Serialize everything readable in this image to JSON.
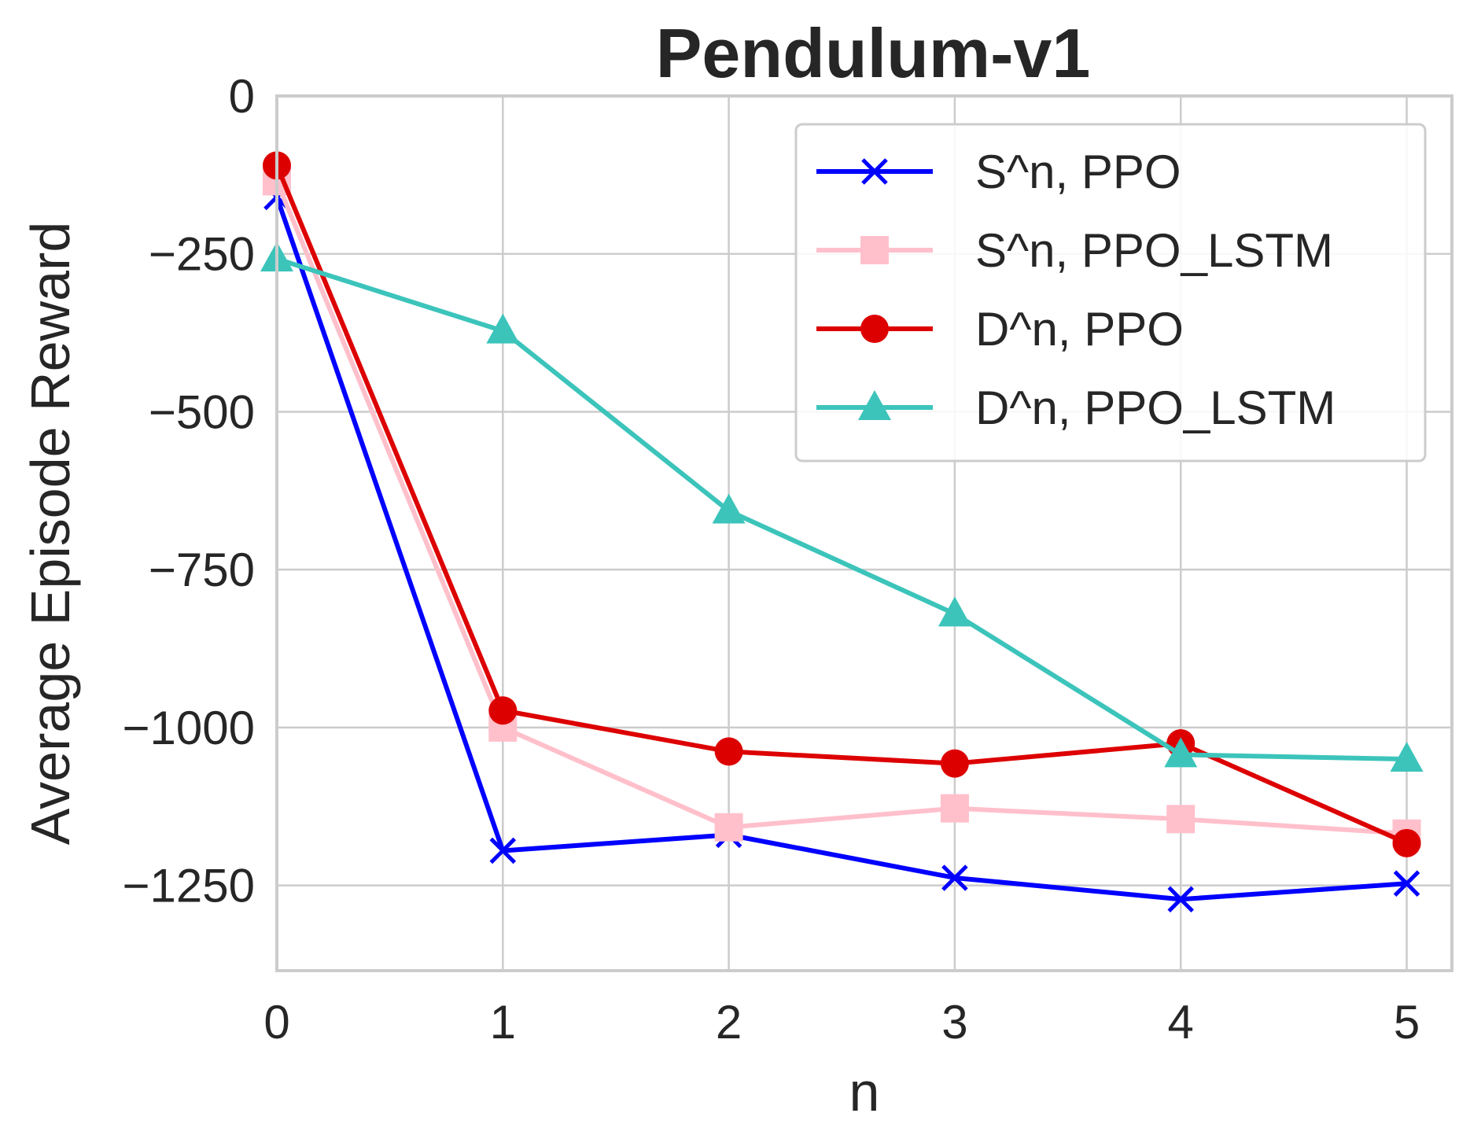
{
  "chart_data": {
    "type": "line",
    "title": "Pendulum-v1",
    "xlabel": "n",
    "ylabel": "Average Episode Reward",
    "x": [
      0,
      1,
      2,
      3,
      4,
      5
    ],
    "xlim": [
      0,
      5.2
    ],
    "ylim": [
      -1385,
      0
    ],
    "xticks": [
      0,
      1,
      2,
      3,
      4,
      5
    ],
    "yticks": [
      0,
      -250,
      -500,
      -750,
      -1000,
      -1250
    ],
    "ytick_labels": [
      "0",
      "−250",
      "−500",
      "−750",
      "−1000",
      "−1250"
    ],
    "grid": true,
    "legend_position": "top-right",
    "series": [
      {
        "name": "S^n, PPO",
        "color": "#0000ff",
        "marker": "x",
        "values": [
          -160,
          -1195,
          -1170,
          -1238,
          -1272,
          -1247
        ]
      },
      {
        "name": "S^n, PPO_LSTM",
        "color": "#ffc0cb",
        "marker": "square",
        "values": [
          -135,
          -1000,
          -1158,
          -1128,
          -1145,
          -1168
        ]
      },
      {
        "name": "D^n, PPO",
        "color": "#dd0000",
        "marker": "circle",
        "values": [
          -110,
          -973,
          -1038,
          -1057,
          -1025,
          -1183
        ]
      },
      {
        "name": "D^n, PPO_LSTM",
        "color": "#3cc4bb",
        "marker": "triangle",
        "values": [
          -258,
          -372,
          -657,
          -820,
          -1043,
          -1050
        ]
      }
    ]
  }
}
